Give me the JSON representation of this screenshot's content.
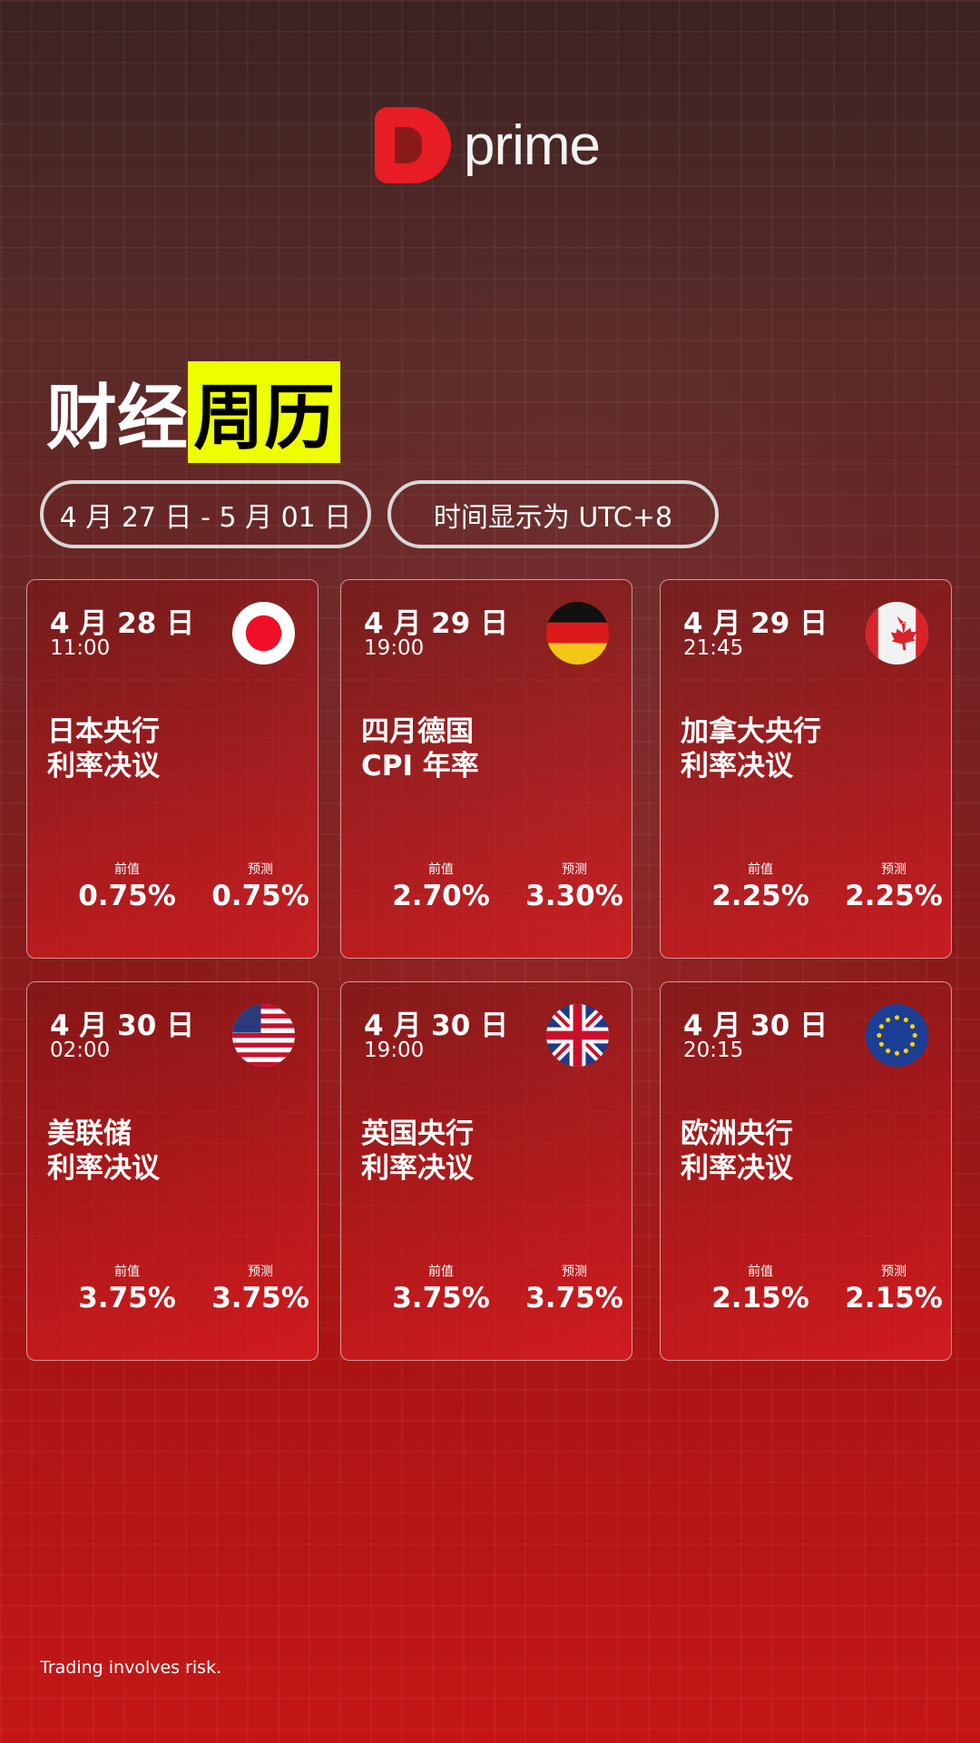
{
  "brand": {
    "logo_text": "prime",
    "accent": "#e81c24",
    "highlight": "#eeff00"
  },
  "title": {
    "part1": "财经",
    "part2": "周历"
  },
  "pills": {
    "range": "4 月 27 日 - 5 月 01 日",
    "timezone": "时间显示为 UTC+8"
  },
  "labels": {
    "previous": "前值",
    "forecast": "预测"
  },
  "cards": [
    {
      "date": "4 月 28 日",
      "time": "11:00",
      "flag": "japan-flag",
      "line1": "日本央行",
      "line2": "利率决议",
      "previous": "0.75%",
      "forecast": "0.75%"
    },
    {
      "date": "4 月 29 日",
      "time": "19:00",
      "flag": "germany-flag",
      "line1": "四月德国",
      "line2": "CPI 年率",
      "previous": "2.70%",
      "forecast": "3.30%"
    },
    {
      "date": "4 月 29 日",
      "time": "21:45",
      "flag": "canada-flag",
      "line1": "加拿大央行",
      "line2": "利率决议",
      "previous": "2.25%",
      "forecast": "2.25%"
    },
    {
      "date": "4 月 30 日",
      "time": "02:00",
      "flag": "usa-flag",
      "line1": "美联储",
      "line2": "利率决议",
      "previous": "3.75%",
      "forecast": "3.75%"
    },
    {
      "date": "4 月 30 日",
      "time": "19:00",
      "flag": "uk-flag",
      "line1": "英国央行",
      "line2": "利率决议",
      "previous": "3.75%",
      "forecast": "3.75%"
    },
    {
      "date": "4 月 30 日",
      "time": "20:15",
      "flag": "eu-flag",
      "line1": "欧洲央行",
      "line2": "利率决议",
      "previous": "2.15%",
      "forecast": "2.15%"
    }
  ],
  "footer": "Trading involves risk."
}
